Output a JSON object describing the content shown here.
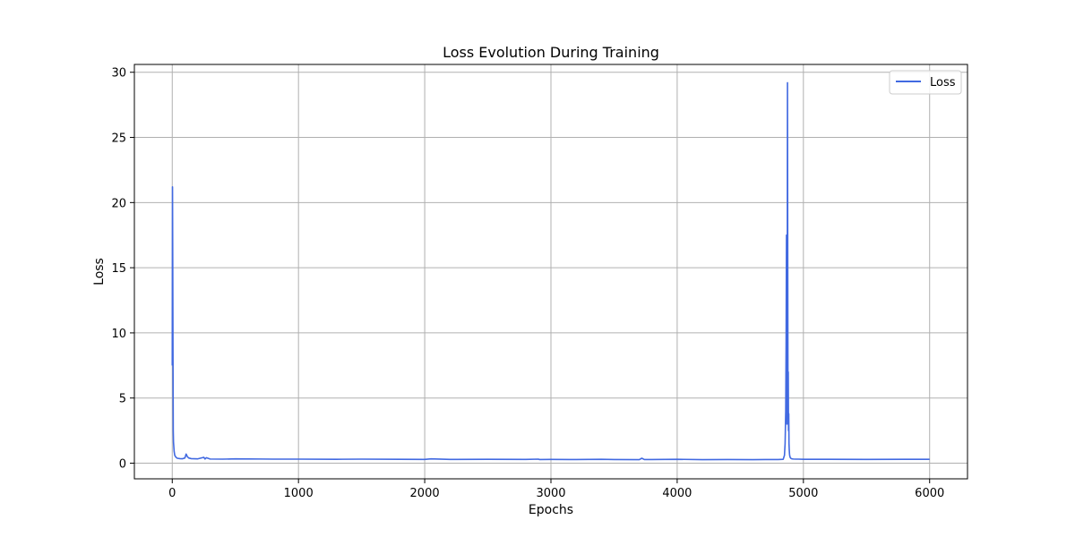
{
  "chart_data": {
    "type": "line",
    "title": "Loss Evolution During Training",
    "xlabel": "Epochs",
    "ylabel": "Loss",
    "xlim": [
      -300,
      6300
    ],
    "ylim": [
      -1.2,
      30.6
    ],
    "xticks": [
      0,
      1000,
      2000,
      3000,
      4000,
      5000,
      6000
    ],
    "yticks": [
      0,
      5,
      10,
      15,
      20,
      25,
      30
    ],
    "grid": true,
    "legend_position": "top-right",
    "series": [
      {
        "name": "Loss",
        "color": "#4169e1",
        "x": [
          0,
          2,
          4,
          6,
          8,
          10,
          15,
          20,
          30,
          40,
          60,
          80,
          100,
          110,
          120,
          130,
          150,
          200,
          250,
          260,
          270,
          300,
          400,
          500,
          700,
          800,
          1000,
          1300,
          1500,
          1800,
          2000,
          2050,
          2200,
          2500,
          2800,
          2900,
          2910,
          3000,
          3200,
          3400,
          3500,
          3700,
          3720,
          3740,
          3800,
          4000,
          4200,
          4400,
          4600,
          4700,
          4800,
          4840,
          4850,
          4855,
          4860,
          4863,
          4866,
          4868,
          4870,
          4872,
          4874,
          4876,
          4878,
          4880,
          4882,
          4884,
          4886,
          4888,
          4890,
          4892,
          4895,
          4900,
          4905,
          4910,
          4920,
          4940,
          4960,
          5000,
          5200,
          5500,
          5800,
          5900,
          6000
        ],
        "y": [
          7.5,
          21.2,
          15.0,
          8.0,
          2.5,
          1.6,
          0.9,
          0.6,
          0.45,
          0.38,
          0.35,
          0.34,
          0.4,
          0.7,
          0.5,
          0.4,
          0.35,
          0.33,
          0.45,
          0.32,
          0.42,
          0.32,
          0.31,
          0.33,
          0.32,
          0.31,
          0.31,
          0.3,
          0.31,
          0.3,
          0.29,
          0.33,
          0.29,
          0.3,
          0.29,
          0.31,
          0.28,
          0.29,
          0.28,
          0.3,
          0.28,
          0.27,
          0.38,
          0.28,
          0.28,
          0.3,
          0.27,
          0.28,
          0.27,
          0.28,
          0.28,
          0.3,
          0.6,
          1.5,
          4.0,
          9.0,
          17.5,
          6.0,
          3.0,
          10.0,
          29.2,
          15.0,
          4.0,
          7.0,
          2.5,
          3.8,
          1.5,
          1.0,
          0.7,
          0.55,
          0.45,
          0.38,
          0.35,
          0.33,
          0.32,
          0.31,
          0.31,
          0.3,
          0.3,
          0.29,
          0.3,
          0.3,
          0.3
        ]
      }
    ]
  }
}
